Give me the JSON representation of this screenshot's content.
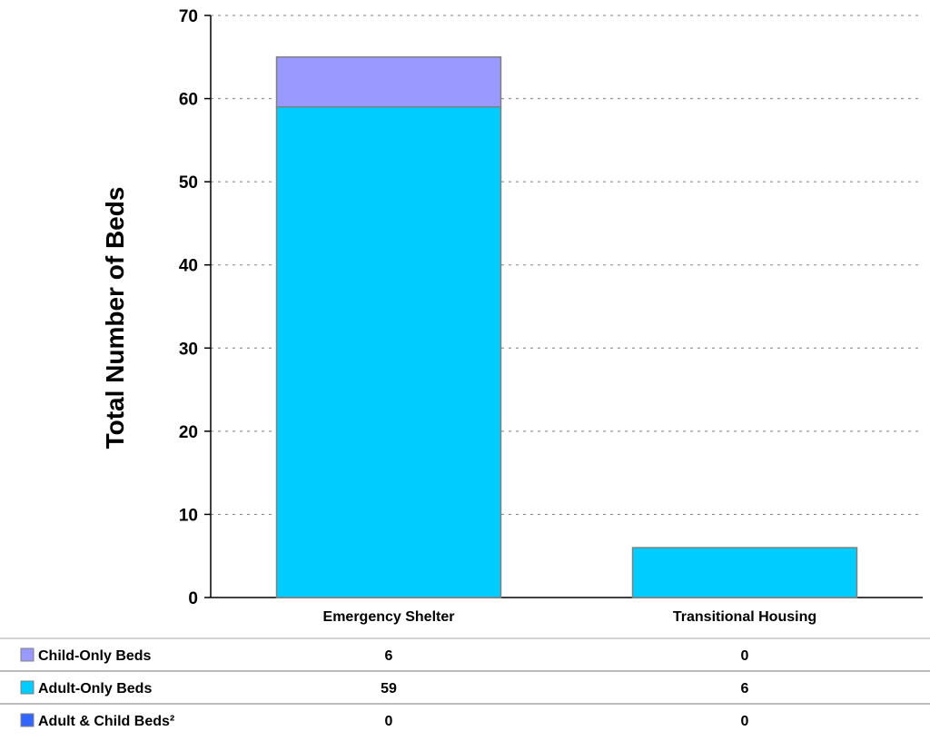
{
  "chart_data": {
    "type": "bar",
    "stacked": true,
    "categories": [
      "Emergency Shelter",
      "Transitional Housing"
    ],
    "series": [
      {
        "name": "Adult & Child Beds²",
        "values": [
          0,
          0
        ],
        "color": "#3366ff"
      },
      {
        "name": "Adult-Only Beds",
        "values": [
          59,
          6
        ],
        "color": "#00ccff"
      },
      {
        "name": "Child-Only Beds",
        "values": [
          6,
          0
        ],
        "color": "#9999ff"
      }
    ],
    "ylabel": "Total Number of Beds",
    "xlabel": "",
    "ylim": [
      0,
      70
    ],
    "yticks": [
      0,
      10,
      20,
      30,
      40,
      50,
      60,
      70
    ],
    "grid": true,
    "legend": "data-table-below",
    "table_rows": [
      {
        "label": "Child-Only Beds",
        "color": "#9999ff",
        "values": [
          6,
          0
        ]
      },
      {
        "label": "Adult-Only Beds",
        "color": "#00ccff",
        "values": [
          59,
          6
        ]
      },
      {
        "label": "Adult & Child Beds²",
        "color": "#3366ff",
        "values": [
          0,
          0
        ]
      }
    ]
  }
}
